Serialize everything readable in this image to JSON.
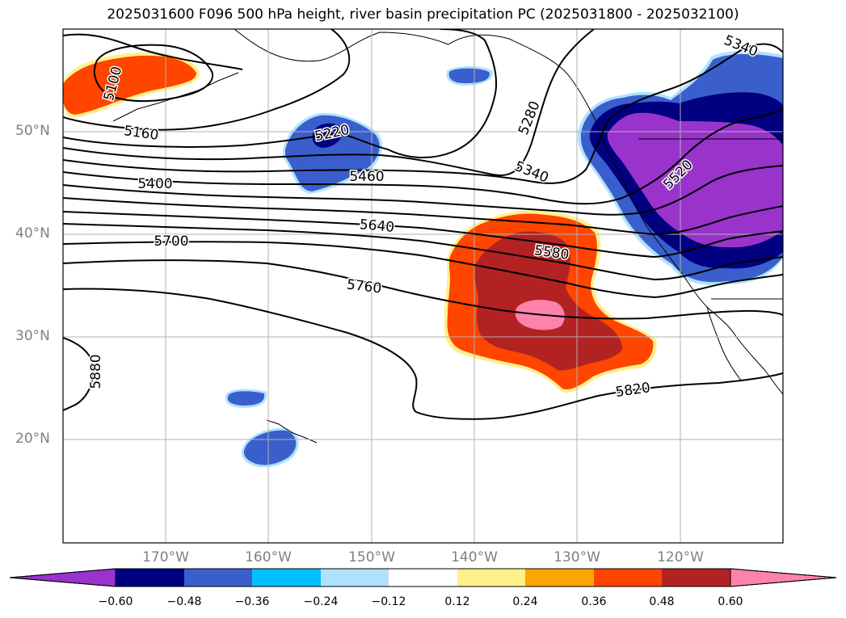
{
  "title": "2025031600 F096 500 hPa height, river basin precipitation PC (2025031800 - 2025032100)",
  "map": {
    "lat_labels": [
      "50°N",
      "40°N",
      "30°N",
      "20°N"
    ],
    "lon_labels": [
      "170°W",
      "160°W",
      "150°W",
      "140°W",
      "130°W",
      "120°W"
    ],
    "extent": {
      "lon_min": -180,
      "lon_max": -110,
      "lat_min": 10,
      "lat_max": 60
    },
    "contour_levels": [
      "5100",
      "5160",
      "5220",
      "5280",
      "5340",
      "5340",
      "5400",
      "5460",
      "5520",
      "5580",
      "5640",
      "5700",
      "5760",
      "5820",
      "5880"
    ]
  },
  "colorbar": {
    "ticks": [
      "−0.60",
      "−0.48",
      "−0.36",
      "−0.24",
      "−0.12",
      "0.12",
      "0.24",
      "0.36",
      "0.48",
      "0.60"
    ],
    "colors": [
      "#9933cc",
      "#000080",
      "#3a5fcd",
      "#00bfff",
      "#b0e2ff",
      "#ffffff",
      "#fff08a",
      "#ffa500",
      "#ff4500",
      "#b22222",
      "#ff82ab"
    ]
  },
  "fills": {
    "purple": "#9933cc",
    "navy": "#000080",
    "royal": "#3a5fcd",
    "sky": "#00bfff",
    "light": "#b0e2ff",
    "yellow": "#fff08a",
    "orange": "#ffa500",
    "orangered": "#ff4500",
    "firebrick": "#b22222",
    "pink": "#ff82ab"
  }
}
